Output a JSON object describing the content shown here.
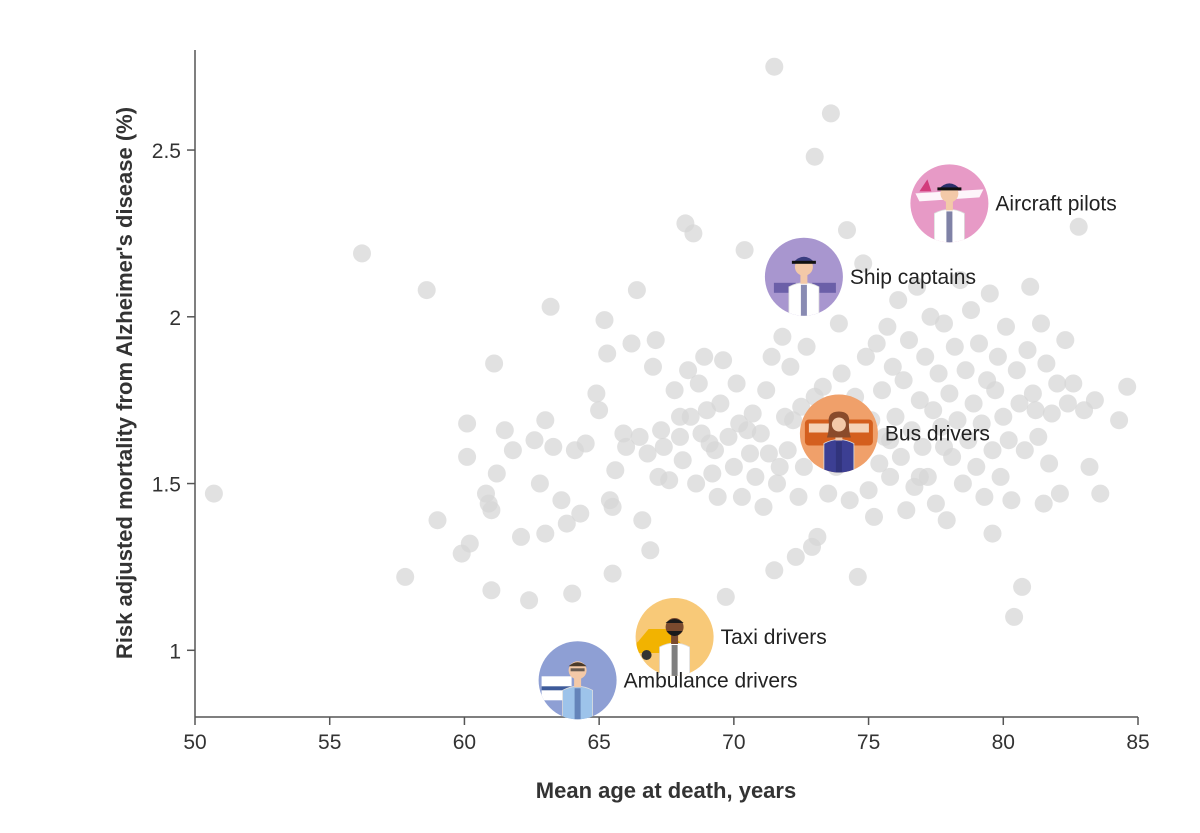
{
  "chart_data": {
    "type": "scatter",
    "xlabel": "Mean age at death, years",
    "ylabel": "Risk adjusted mortality from Alzheimer's disease (%)",
    "xlim": [
      50,
      85
    ],
    "ylim": [
      0.8,
      2.8
    ],
    "x_ticks": [
      50,
      55,
      60,
      65,
      70,
      75,
      80,
      85
    ],
    "y_ticks": [
      1,
      1.5,
      2,
      2.5
    ],
    "y_tick_labels": [
      "1",
      "1.5",
      "2",
      "2.5"
    ],
    "point_color": "#d6d6d6",
    "highlighted": [
      {
        "label": "Aircraft pilots",
        "x": 78.0,
        "y": 2.34,
        "color": "#e79ac6",
        "icon": "aircraft-pilot-icon"
      },
      {
        "label": "Ship captains",
        "x": 72.6,
        "y": 2.12,
        "color": "#a896cf",
        "icon": "ship-captain-icon"
      },
      {
        "label": "Bus drivers",
        "x": 73.9,
        "y": 1.65,
        "color": "#f0a06a",
        "icon": "bus-driver-icon"
      },
      {
        "label": "Taxi drivers",
        "x": 67.8,
        "y": 1.04,
        "color": "#f8c978",
        "icon": "taxi-driver-icon"
      },
      {
        "label": "Ambulance drivers",
        "x": 64.2,
        "y": 0.91,
        "color": "#8e9fd4",
        "icon": "ambulance-driver-icon"
      }
    ],
    "points": [
      [
        50.7,
        1.47
      ],
      [
        56.2,
        2.19
      ],
      [
        57.8,
        1.22
      ],
      [
        58.6,
        2.08
      ],
      [
        59.0,
        1.39
      ],
      [
        59.9,
        1.29
      ],
      [
        60.1,
        1.58
      ],
      [
        60.1,
        1.68
      ],
      [
        60.2,
        1.32
      ],
      [
        60.8,
        1.47
      ],
      [
        60.9,
        1.44
      ],
      [
        61.0,
        1.18
      ],
      [
        61.1,
        1.86
      ],
      [
        61.2,
        1.53
      ],
      [
        61.0,
        1.42
      ],
      [
        61.5,
        1.66
      ],
      [
        61.8,
        1.6
      ],
      [
        62.1,
        1.34
      ],
      [
        62.4,
        1.15
      ],
      [
        62.6,
        1.63
      ],
      [
        62.8,
        1.5
      ],
      [
        63.0,
        1.69
      ],
      [
        63.0,
        1.35
      ],
      [
        63.2,
        2.03
      ],
      [
        63.3,
        1.61
      ],
      [
        63.6,
        1.45
      ],
      [
        63.8,
        1.38
      ],
      [
        64.0,
        1.17
      ],
      [
        64.1,
        1.6
      ],
      [
        64.3,
        1.41
      ],
      [
        64.5,
        1.62
      ],
      [
        64.9,
        1.77
      ],
      [
        65.0,
        1.72
      ],
      [
        65.2,
        1.99
      ],
      [
        65.3,
        1.89
      ],
      [
        65.4,
        1.45
      ],
      [
        65.5,
        1.23
      ],
      [
        65.5,
        1.43
      ],
      [
        65.6,
        1.54
      ],
      [
        65.9,
        1.65
      ],
      [
        66.0,
        1.61
      ],
      [
        66.2,
        1.92
      ],
      [
        66.4,
        2.08
      ],
      [
        66.5,
        1.64
      ],
      [
        66.6,
        1.39
      ],
      [
        66.8,
        1.59
      ],
      [
        66.9,
        1.3
      ],
      [
        67.0,
        1.85
      ],
      [
        67.1,
        1.93
      ],
      [
        67.2,
        1.52
      ],
      [
        67.3,
        1.66
      ],
      [
        67.4,
        1.61
      ],
      [
        67.6,
        1.51
      ],
      [
        67.8,
        1.78
      ],
      [
        68.0,
        1.64
      ],
      [
        68.1,
        1.57
      ],
      [
        68.2,
        2.28
      ],
      [
        68.3,
        1.84
      ],
      [
        68.4,
        1.7
      ],
      [
        68.5,
        2.25
      ],
      [
        68.6,
        1.5
      ],
      [
        68.7,
        1.8
      ],
      [
        68.8,
        1.65
      ],
      [
        68.9,
        1.88
      ],
      [
        69.0,
        1.72
      ],
      [
        69.2,
        1.53
      ],
      [
        69.3,
        1.6
      ],
      [
        69.4,
        1.46
      ],
      [
        69.5,
        1.74
      ],
      [
        69.6,
        1.87
      ],
      [
        69.7,
        1.16
      ],
      [
        69.8,
        1.64
      ],
      [
        70.0,
        1.55
      ],
      [
        70.1,
        1.8
      ],
      [
        70.2,
        1.68
      ],
      [
        70.3,
        1.46
      ],
      [
        70.4,
        2.2
      ],
      [
        70.6,
        1.59
      ],
      [
        70.7,
        1.71
      ],
      [
        70.8,
        1.52
      ],
      [
        71.0,
        1.65
      ],
      [
        71.1,
        1.43
      ],
      [
        71.2,
        1.78
      ],
      [
        71.3,
        1.59
      ],
      [
        71.4,
        1.88
      ],
      [
        71.5,
        1.24
      ],
      [
        71.5,
        2.75
      ],
      [
        71.6,
        1.5
      ],
      [
        71.8,
        1.94
      ],
      [
        71.9,
        1.7
      ],
      [
        72.0,
        1.6
      ],
      [
        72.1,
        1.85
      ],
      [
        72.3,
        1.28
      ],
      [
        72.4,
        1.46
      ],
      [
        72.5,
        1.73
      ],
      [
        72.6,
        1.55
      ],
      [
        72.7,
        1.91
      ],
      [
        72.8,
        1.63
      ],
      [
        72.9,
        1.31
      ],
      [
        73.0,
        2.48
      ],
      [
        73.1,
        1.34
      ],
      [
        73.2,
        1.58
      ],
      [
        73.3,
        1.79
      ],
      [
        73.4,
        2.09
      ],
      [
        73.5,
        1.47
      ],
      [
        73.6,
        2.61
      ],
      [
        73.7,
        1.72
      ],
      [
        73.8,
        1.55
      ],
      [
        73.9,
        1.98
      ],
      [
        74.0,
        1.83
      ],
      [
        74.1,
        1.62
      ],
      [
        74.2,
        2.26
      ],
      [
        74.3,
        1.45
      ],
      [
        74.5,
        1.76
      ],
      [
        74.6,
        1.22
      ],
      [
        74.7,
        1.6
      ],
      [
        74.8,
        2.16
      ],
      [
        74.9,
        1.88
      ],
      [
        75.0,
        1.48
      ],
      [
        75.1,
        1.69
      ],
      [
        75.2,
        1.4
      ],
      [
        75.3,
        1.92
      ],
      [
        75.4,
        1.56
      ],
      [
        75.5,
        1.78
      ],
      [
        75.6,
        1.64
      ],
      [
        75.7,
        1.97
      ],
      [
        75.8,
        1.52
      ],
      [
        75.9,
        1.85
      ],
      [
        76.0,
        1.7
      ],
      [
        76.1,
        2.05
      ],
      [
        76.2,
        1.58
      ],
      [
        76.3,
        1.81
      ],
      [
        76.4,
        1.42
      ],
      [
        76.5,
        1.93
      ],
      [
        76.6,
        1.66
      ],
      [
        76.7,
        1.49
      ],
      [
        76.8,
        2.09
      ],
      [
        76.9,
        1.75
      ],
      [
        77.0,
        1.61
      ],
      [
        77.1,
        1.88
      ],
      [
        77.2,
        1.52
      ],
      [
        77.3,
        2.0
      ],
      [
        77.4,
        1.72
      ],
      [
        77.5,
        1.44
      ],
      [
        77.6,
        1.83
      ],
      [
        77.7,
        1.67
      ],
      [
        77.8,
        1.98
      ],
      [
        77.9,
        1.39
      ],
      [
        78.0,
        1.77
      ],
      [
        78.1,
        1.58
      ],
      [
        78.2,
        1.91
      ],
      [
        78.3,
        1.69
      ],
      [
        78.4,
        2.11
      ],
      [
        78.5,
        1.5
      ],
      [
        78.6,
        1.84
      ],
      [
        78.7,
        1.63
      ],
      [
        78.8,
        2.02
      ],
      [
        78.9,
        1.74
      ],
      [
        79.0,
        1.55
      ],
      [
        79.1,
        1.92
      ],
      [
        79.2,
        1.68
      ],
      [
        79.3,
        1.46
      ],
      [
        79.4,
        1.81
      ],
      [
        79.5,
        2.07
      ],
      [
        79.6,
        1.6
      ],
      [
        79.7,
        1.78
      ],
      [
        79.8,
        1.88
      ],
      [
        79.9,
        1.52
      ],
      [
        80.0,
        1.7
      ],
      [
        80.1,
        1.97
      ],
      [
        80.2,
        1.63
      ],
      [
        80.3,
        1.45
      ],
      [
        80.4,
        1.1
      ],
      [
        80.5,
        1.84
      ],
      [
        80.6,
        1.74
      ],
      [
        80.7,
        1.19
      ],
      [
        80.8,
        1.6
      ],
      [
        80.9,
        1.9
      ],
      [
        81.0,
        2.09
      ],
      [
        81.1,
        1.77
      ],
      [
        81.3,
        1.64
      ],
      [
        81.4,
        1.98
      ],
      [
        81.5,
        1.44
      ],
      [
        81.6,
        1.86
      ],
      [
        81.7,
        1.56
      ],
      [
        81.8,
        1.71
      ],
      [
        82.0,
        1.8
      ],
      [
        82.1,
        1.47
      ],
      [
        82.3,
        1.93
      ],
      [
        82.4,
        1.74
      ],
      [
        82.6,
        1.8
      ],
      [
        82.8,
        2.27
      ],
      [
        83.0,
        1.72
      ],
      [
        83.2,
        1.55
      ],
      [
        83.4,
        1.75
      ],
      [
        83.6,
        1.47
      ],
      [
        84.3,
        1.69
      ],
      [
        84.6,
        1.79
      ],
      [
        81.2,
        1.72
      ],
      [
        79.6,
        1.35
      ],
      [
        70.5,
        1.66
      ],
      [
        71.7,
        1.55
      ],
      [
        72.2,
        1.69
      ],
      [
        73.0,
        1.76
      ],
      [
        74.4,
        1.58
      ],
      [
        75.8,
        1.63
      ],
      [
        76.9,
        1.52
      ],
      [
        77.8,
        1.61
      ],
      [
        69.1,
        1.62
      ],
      [
        68.0,
        1.7
      ]
    ]
  }
}
